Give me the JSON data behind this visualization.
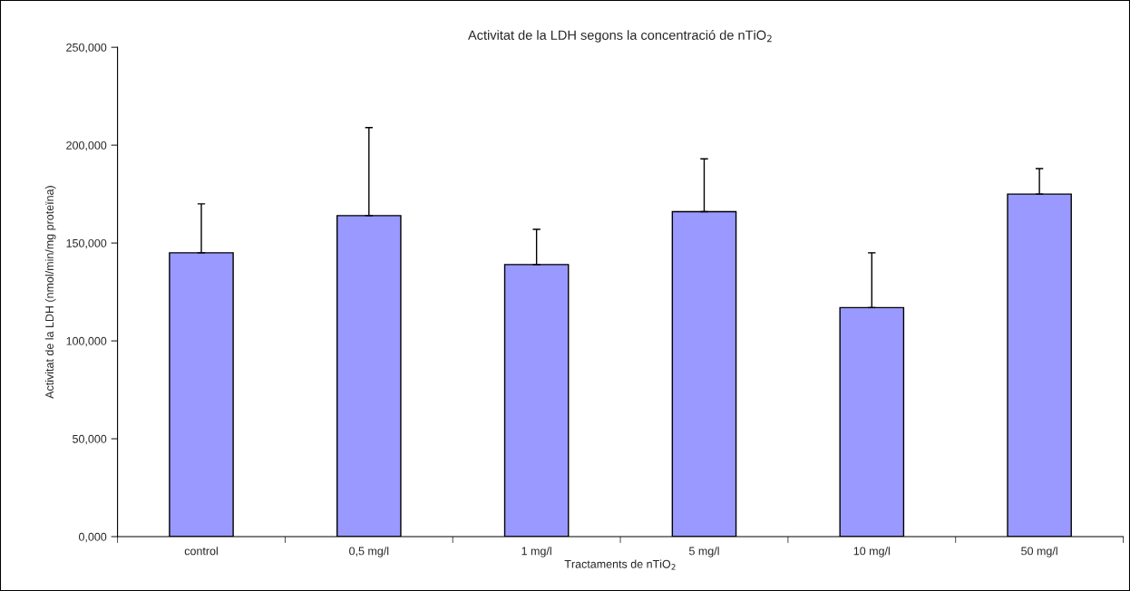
{
  "chart_data": {
    "type": "bar",
    "title": "Activitat de la LDH segons la concentració de nTiO$_{2}$",
    "xlabel": "Tractaments de nTiO$_{2}$",
    "ylabel": "Activitat de la LDH (nmol/min/mg proteïna)",
    "categories": [
      "control",
      "0,5 mg/l",
      "1 mg/l",
      "5 mg/l",
      "10 mg/l",
      "50 mg/l"
    ],
    "values": [
      145,
      164,
      139,
      166,
      117,
      175
    ],
    "errors": [
      [
        145,
        170
      ],
      [
        164,
        209
      ],
      [
        139,
        157
      ],
      [
        166,
        193
      ],
      [
        117,
        145
      ],
      [
        175,
        188
      ]
    ],
    "color": "#9999ff",
    "ylim": [
      0,
      250
    ],
    "yticks": [
      {
        "value": 0,
        "label": "0,000"
      },
      {
        "value": 50,
        "label": "50,000"
      },
      {
        "value": 100,
        "label": "100,000"
      },
      {
        "value": 150,
        "label": "150,000"
      },
      {
        "value": 200,
        "label": "200,000"
      },
      {
        "value": 250,
        "label": "250,000"
      }
    ],
    "grid": false,
    "legend": false
  }
}
